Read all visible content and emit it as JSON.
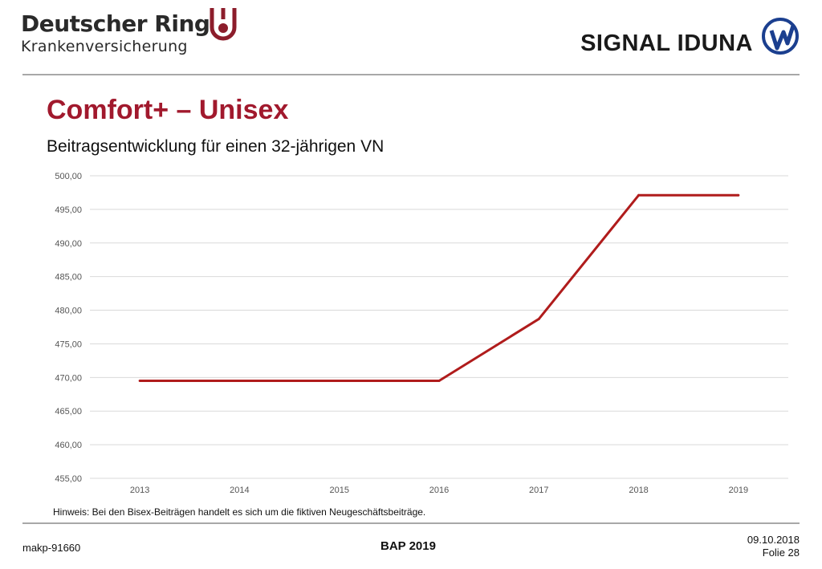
{
  "header": {
    "brand_left_name": "Deutscher Ring",
    "brand_left_sub": "Krankenversicherung",
    "brand_right": "SIGNAL IDUNA",
    "brand_left_color": "#8c1d2b",
    "brand_right_color": "#1b3f8f"
  },
  "slide": {
    "title": "Comfort+ – Unisex",
    "subtitle": "Beitragsentwicklung für einen 32-jährigen VN",
    "hint": "Hinweis: Bei den Bisex-Beiträgen handelt es sich um die fiktiven Neugeschäftsbeiträge."
  },
  "footer": {
    "left": "makp-91660",
    "center": "BAP 2019",
    "date": "09.10.2018",
    "page": "Folie 28"
  },
  "chart_data": {
    "type": "line",
    "categories": [
      "2013",
      "2014",
      "2015",
      "2016",
      "2017",
      "2018",
      "2019"
    ],
    "y_ticks": [
      "455,00",
      "460,00",
      "465,00",
      "470,00",
      "475,00",
      "480,00",
      "485,00",
      "490,00",
      "495,00",
      "500,00"
    ],
    "series": [
      {
        "values": [
          469.5,
          469.5,
          469.5,
          469.5,
          478.7,
          497.1,
          497.1
        ],
        "color": "#b01c1c"
      }
    ],
    "ylim": [
      455,
      500
    ],
    "grid": true,
    "legend": "none"
  }
}
